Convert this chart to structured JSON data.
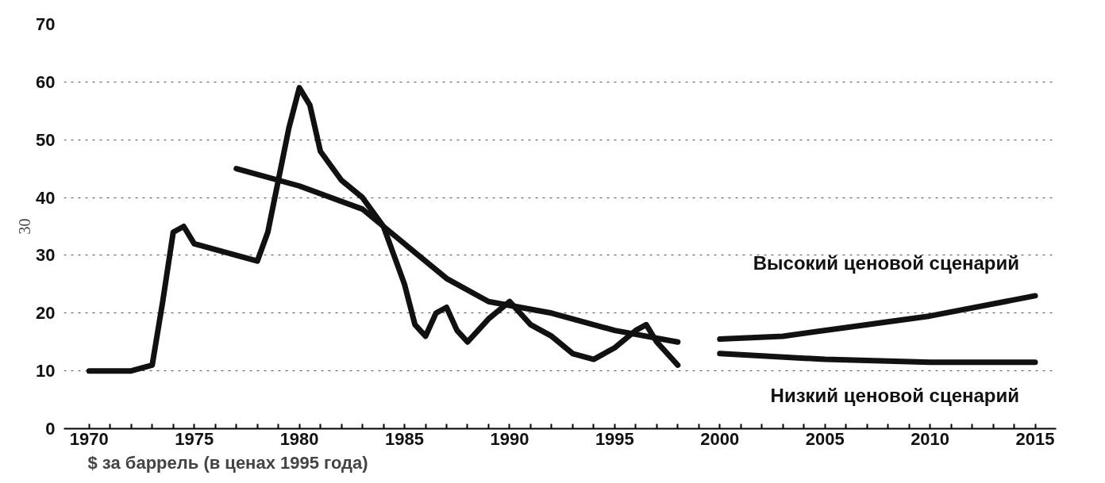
{
  "chart_data": {
    "type": "line",
    "annotations": [
      "30",
      "$ за баррель (в ценах 1995 года)"
    ],
    "series": [
      {
        "color": "#111111",
        "x": [
          1970,
          1971,
          1972,
          1973,
          1973.5,
          1974,
          1974.5,
          1975,
          1976,
          1977,
          1978,
          1978.5,
          1979,
          1979.5,
          1980,
          1980.5,
          1981,
          1982,
          1983,
          1984,
          1985,
          1985.5,
          1986,
          1986.5,
          1987,
          1987.5,
          1988,
          1989,
          1990,
          1991,
          1992,
          1993,
          1994,
          1995,
          1996,
          1996.5,
          1997,
          1998
        ],
        "values": [
          10,
          10,
          10,
          11,
          22,
          34,
          35,
          32,
          31,
          30,
          29,
          34,
          43,
          52,
          59,
          56,
          48,
          43,
          40,
          35,
          25,
          18,
          16,
          20,
          21,
          17,
          15,
          19,
          22,
          18,
          16,
          13,
          12,
          14,
          17,
          18,
          15,
          11
        ]
      },
      {
        "color": "#111111",
        "x": [
          1977,
          1980,
          1983,
          1985,
          1987,
          1989,
          1992,
          1995,
          1998
        ],
        "values": [
          45,
          42,
          38,
          32,
          26,
          22,
          20,
          17,
          15
        ]
      },
      {
        "name": "Высокий ценовой сценарий",
        "color": "#111111",
        "x": [
          2000,
          2003,
          2006,
          2010,
          2015
        ],
        "values": [
          15.5,
          16,
          17.5,
          19.5,
          23
        ]
      },
      {
        "name": "Низкий ценовой сценарий",
        "color": "#111111",
        "x": [
          2000,
          2005,
          2010,
          2015
        ],
        "values": [
          13,
          12,
          11.5,
          11.5
        ]
      }
    ],
    "xlim": [
      1968.8,
      2016
    ],
    "xticks": [
      1970,
      {
        "value": 1971,
        "label": null
      },
      {
        "value": 1972,
        "label": null
      },
      {
        "value": 1973,
        "label": null
      },
      {
        "value": 1974,
        "label": null
      },
      1975,
      {
        "value": 1976,
        "label": null
      },
      {
        "value": 1977,
        "label": null
      },
      {
        "value": 1978,
        "label": null
      },
      {
        "value": 1979,
        "label": null
      },
      1980,
      {
        "value": 1981,
        "label": null
      },
      {
        "value": 1982,
        "label": null
      },
      {
        "value": 1983,
        "label": null
      },
      {
        "value": 1984,
        "label": null
      },
      1985,
      {
        "value": 1986,
        "label": null
      },
      {
        "value": 1987,
        "label": null
      },
      {
        "value": 1988,
        "label": null
      },
      {
        "value": 1989,
        "label": null
      },
      1990,
      {
        "value": 1991,
        "label": null
      },
      {
        "value": 1992,
        "label": null
      },
      {
        "value": 1993,
        "label": null
      },
      {
        "value": 1994,
        "label": null
      },
      1995,
      {
        "value": 1996,
        "label": null
      },
      {
        "value": 1997,
        "label": null
      },
      {
        "value": 1998,
        "label": null
      },
      {
        "value": 1999,
        "label": null
      },
      2000,
      {
        "value": 2001,
        "label": null
      },
      {
        "value": 2002,
        "label": null
      },
      {
        "value": 2003,
        "label": null
      },
      {
        "value": 2004,
        "label": null
      },
      2005,
      {
        "value": 2006,
        "label": null
      },
      {
        "value": 2007,
        "label": null
      },
      {
        "value": 2008,
        "label": null
      },
      {
        "value": 2009,
        "label": null
      },
      2010,
      {
        "value": 2011,
        "label": null
      },
      {
        "value": 2012,
        "label": null
      },
      {
        "value": 2013,
        "label": null
      },
      {
        "value": 2014,
        "label": null
      },
      2015
    ],
    "ylim": [
      0,
      70
    ],
    "yticks": [
      0,
      10,
      20,
      30,
      40,
      50,
      60,
      70
    ],
    "grid": "y",
    "line_style": "solid",
    "marker": "none"
  }
}
